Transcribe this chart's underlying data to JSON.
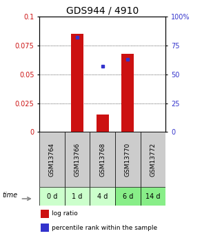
{
  "title": "GDS944 / 4910",
  "samples": [
    "GSM13764",
    "GSM13766",
    "GSM13768",
    "GSM13770",
    "GSM13772"
  ],
  "time_labels": [
    "0 d",
    "1 d",
    "4 d",
    "6 d",
    "14 d"
  ],
  "log_ratio": [
    0.0,
    0.085,
    0.015,
    0.068,
    0.0
  ],
  "percentile_rank": [
    0.0,
    0.82,
    0.57,
    0.63,
    0.0
  ],
  "ylim_left": [
    0,
    0.1
  ],
  "ylim_right": [
    0,
    100
  ],
  "yticks_left": [
    0,
    0.025,
    0.05,
    0.075,
    0.1
  ],
  "yticks_right": [
    0,
    25,
    50,
    75,
    100
  ],
  "bar_color": "#cc1111",
  "point_color": "#3333cc",
  "bar_width": 0.5,
  "bg_plot": "#ffffff",
  "bg_label_row": "#cccccc",
  "time_colors": [
    "#ccffcc",
    "#ccffcc",
    "#ccffcc",
    "#88ee88",
    "#88ee88"
  ],
  "title_fontsize": 10,
  "tick_fontsize": 7,
  "sample_fontsize": 6.5,
  "time_fontsize": 7,
  "legend_fontsize": 6.5
}
